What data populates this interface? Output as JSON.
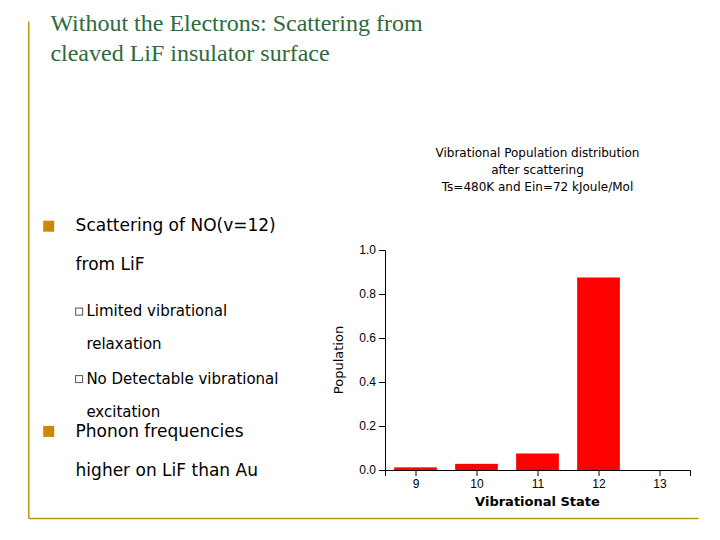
{
  "chart_data": {
    "type": "bar",
    "title": [
      "Without the Electrons: Scattering from",
      "cleaved LiF insulator surface"
    ],
    "subtitle": [
      "Vibrational Population distribution",
      "after scattering",
      "Ts=480K and Ein=72 kJoule/Mol"
    ],
    "annotations": [
      [
        "Scattering of NO(v=12)",
        "from LiF"
      ],
      [
        "Limited vibrational",
        "relaxation"
      ],
      [
        "No Detectable vibrational",
        "excitation"
      ],
      [
        "Phonon frequencies",
        "higher on LiF than Au"
      ]
    ],
    "x": [
      9,
      10,
      11,
      12,
      13
    ],
    "values": [
      0.012,
      0.028,
      0.075,
      0.875,
      0.0
    ],
    "color": "#ff0000",
    "x_label": "Vibrational State",
    "y_label": "Population",
    "xlim": [
      8.5,
      13.5
    ],
    "xticks": [
      9,
      10,
      11,
      12,
      13
    ],
    "ylim": [
      0.0,
      1.0
    ],
    "yticks": [
      {
        "value": 0.0,
        "label": "0.0"
      },
      0.2,
      0.4,
      0.6,
      0.8,
      {
        "value": 1.0,
        "label": "1.0"
      }
    ],
    "grid": false
  }
}
